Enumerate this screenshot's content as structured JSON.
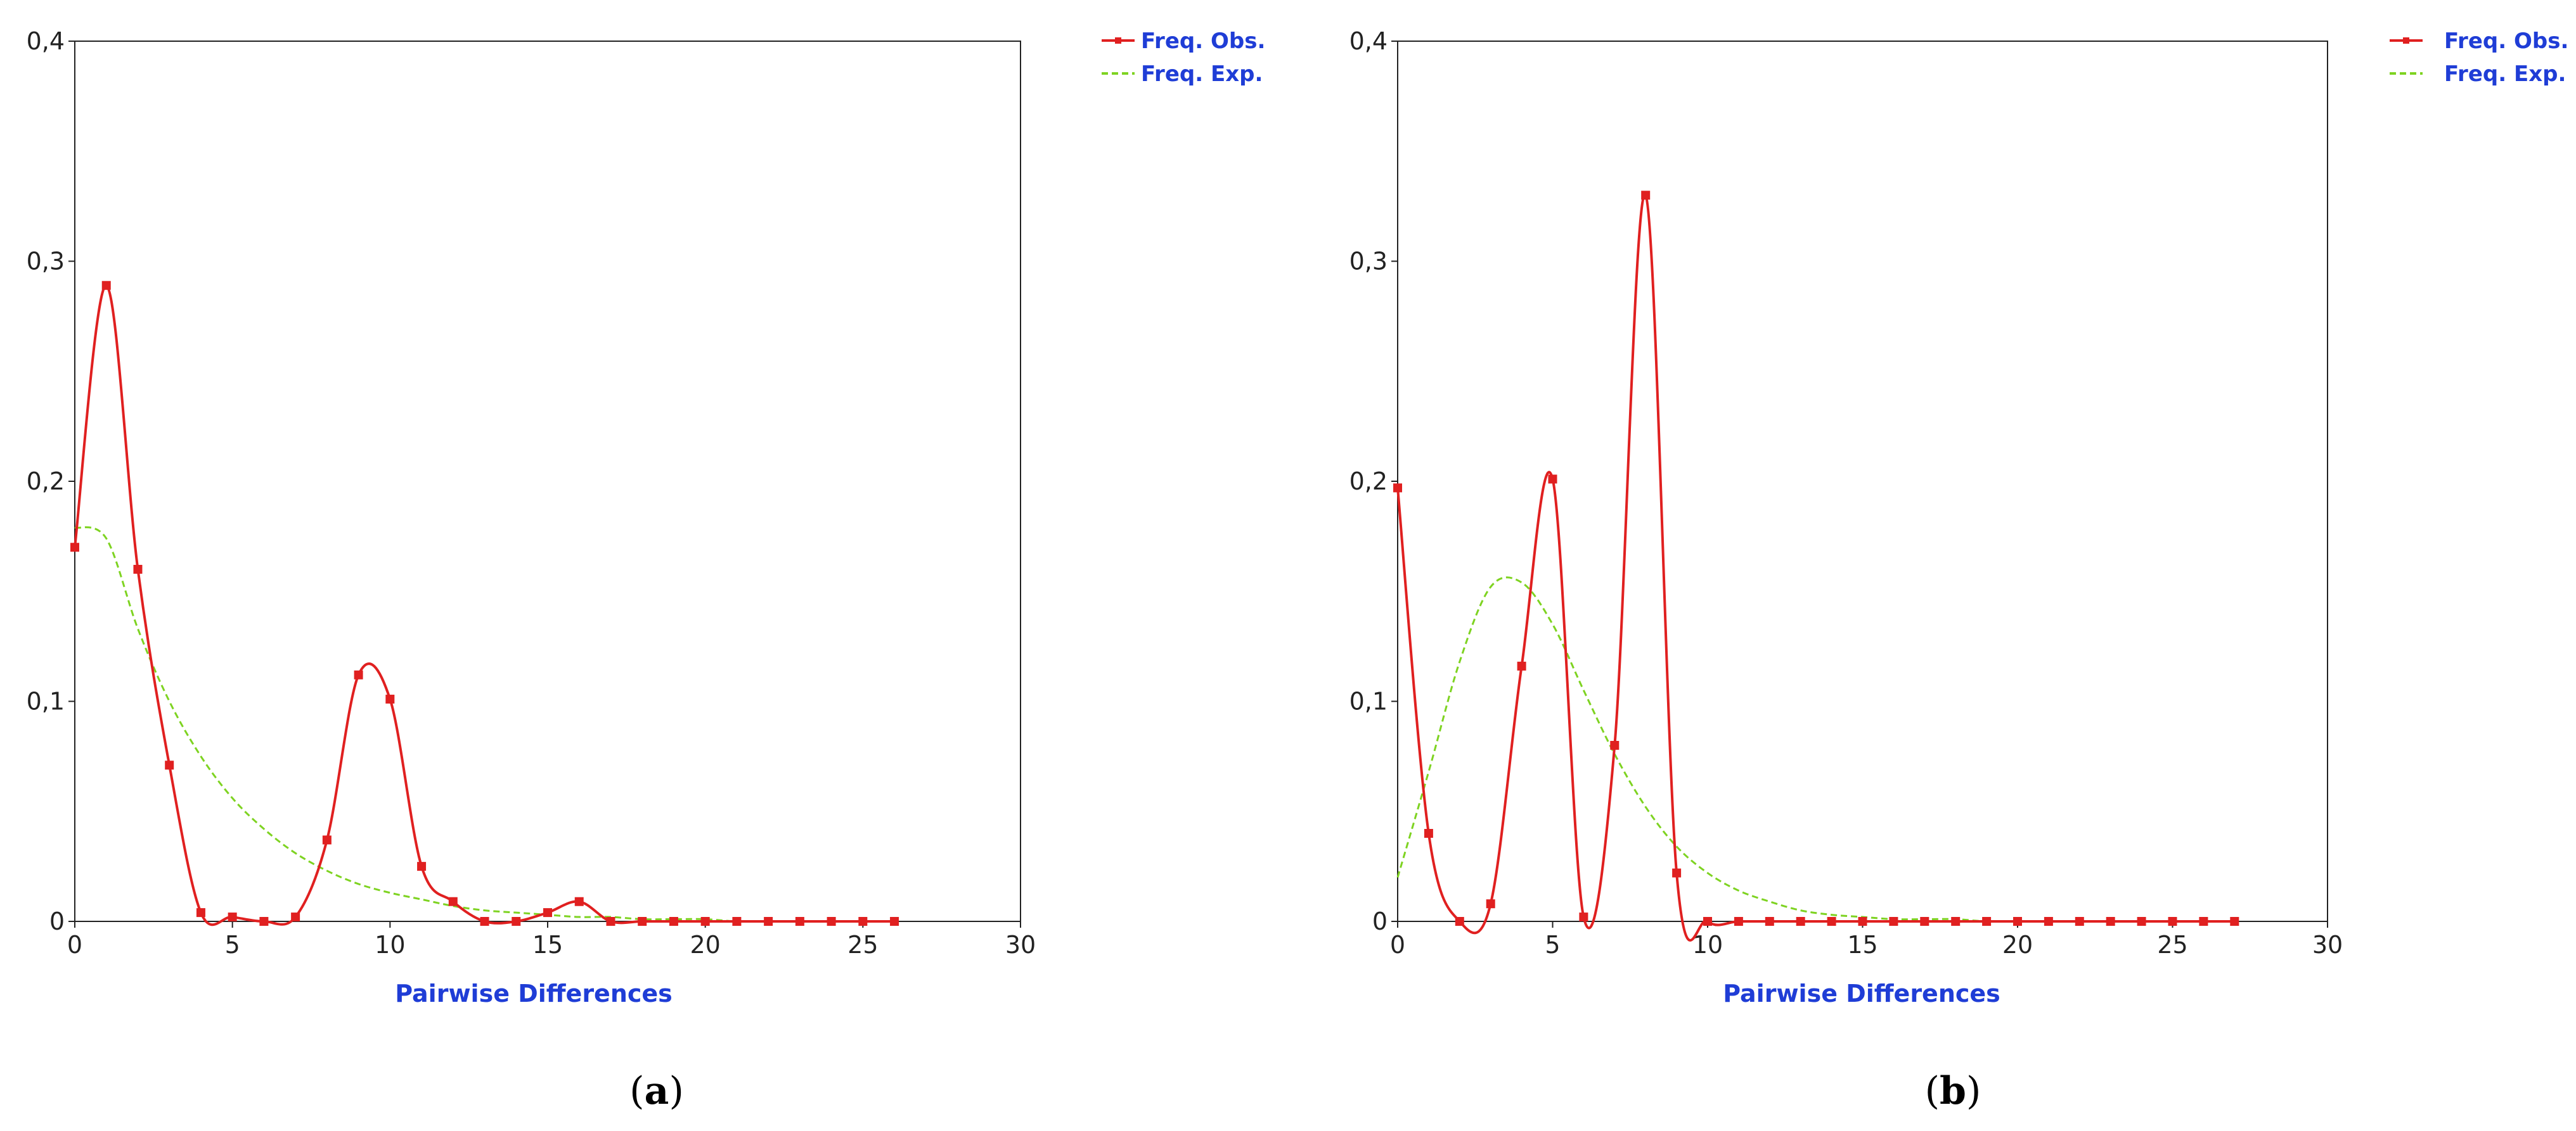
{
  "chart_data": [
    {
      "type": "line",
      "caption": "a",
      "xlabel": "Pairwise Differences",
      "ylabel": "",
      "xlim": [
        0,
        30
      ],
      "ylim": [
        0,
        0.4
      ],
      "xticks": [
        "0",
        "5",
        "10",
        "15",
        "20",
        "25",
        "30"
      ],
      "yticks": [
        "0",
        "0,1",
        "0,2",
        "0,3",
        "0,4"
      ],
      "grid": false,
      "legend_position": "top-right",
      "series": [
        {
          "name": "Freq. Obs.",
          "style": "solid-with-markers",
          "color": "#e02020",
          "x": [
            0,
            1,
            2,
            3,
            4,
            5,
            6,
            7,
            8,
            9,
            10,
            11,
            12,
            13,
            14,
            15,
            16,
            17,
            18,
            19,
            20,
            21,
            22,
            23,
            24,
            25,
            26
          ],
          "y": [
            0.17,
            0.289,
            0.16,
            0.071,
            0.004,
            0.002,
            0.0,
            0.002,
            0.037,
            0.112,
            0.101,
            0.025,
            0.009,
            0.0,
            0.0,
            0.004,
            0.009,
            0.0,
            0.0,
            0.0,
            0.0,
            0.0,
            0.0,
            0.0,
            0.0,
            0.0,
            0.0
          ]
        },
        {
          "name": "Freq. Exp.",
          "style": "dashed",
          "color": "#7ed321",
          "x": [
            0,
            1,
            2,
            3,
            4,
            5,
            6,
            7,
            8,
            9,
            10,
            11,
            12,
            13,
            14,
            15,
            16,
            17,
            18,
            19,
            20,
            21,
            22,
            23,
            24,
            25,
            26
          ],
          "y": [
            0.179,
            0.174,
            0.133,
            0.1,
            0.075,
            0.056,
            0.042,
            0.031,
            0.023,
            0.017,
            0.013,
            0.01,
            0.007,
            0.005,
            0.004,
            0.003,
            0.002,
            0.002,
            0.001,
            0.001,
            0.001,
            0.0,
            0.0,
            0.0,
            0.0,
            0.0,
            0.0
          ]
        }
      ]
    },
    {
      "type": "line",
      "caption": "b",
      "xlabel": "Pairwise Differences",
      "ylabel": "",
      "xlim": [
        0,
        30
      ],
      "ylim": [
        0,
        0.4
      ],
      "xticks": [
        "0",
        "5",
        "10",
        "15",
        "20",
        "25",
        "30"
      ],
      "yticks": [
        "0",
        "0,1",
        "0,2",
        "0,3",
        "0,4"
      ],
      "grid": false,
      "legend_position": "top-right",
      "series": [
        {
          "name": "Freq. Obs.",
          "style": "solid-with-markers",
          "color": "#e02020",
          "x": [
            0,
            1,
            2,
            3,
            4,
            5,
            6,
            7,
            8,
            9,
            10,
            11,
            12,
            13,
            14,
            15,
            16,
            17,
            18,
            19,
            20,
            21,
            22,
            23,
            24,
            25,
            26,
            27
          ],
          "y": [
            0.197,
            0.04,
            0.0,
            0.008,
            0.116,
            0.201,
            0.002,
            0.08,
            0.33,
            0.022,
            0.0,
            0.0,
            0.0,
            0.0,
            0.0,
            0.0,
            0.0,
            0.0,
            0.0,
            0.0,
            0.0,
            0.0,
            0.0,
            0.0,
            0.0,
            0.0,
            0.0,
            0.0
          ]
        },
        {
          "name": "Freq. Exp.",
          "style": "dashed",
          "color": "#7ed321",
          "x": [
            0,
            1,
            2,
            3,
            4,
            5,
            6,
            7,
            8,
            9,
            10,
            11,
            12,
            13,
            14,
            15,
            16,
            17,
            18,
            19,
            20,
            21,
            22,
            23,
            24,
            25,
            26,
            27
          ],
          "y": [
            0.02,
            0.068,
            0.118,
            0.152,
            0.154,
            0.135,
            0.105,
            0.076,
            0.052,
            0.034,
            0.022,
            0.014,
            0.009,
            0.005,
            0.003,
            0.002,
            0.001,
            0.001,
            0.001,
            0.0,
            0.0,
            0.0,
            0.0,
            0.0,
            0.0,
            0.0,
            0.0,
            0.0
          ]
        }
      ]
    }
  ]
}
